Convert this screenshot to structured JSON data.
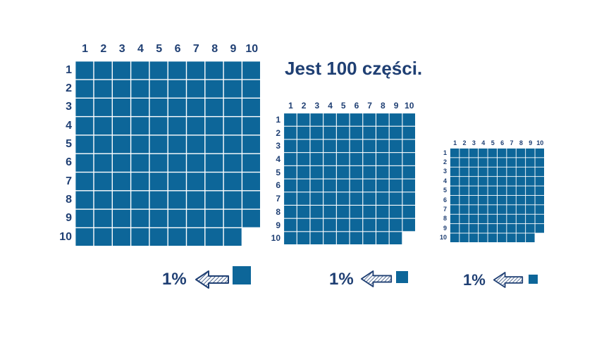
{
  "title": "Jest 100 części.",
  "colors": {
    "cell": "#0d6699",
    "grid_line": "#ffffff",
    "text": "#1f3f73"
  },
  "grid": {
    "rows": 10,
    "cols": 10,
    "column_labels": [
      "1",
      "2",
      "3",
      "4",
      "5",
      "6",
      "7",
      "8",
      "9",
      "10"
    ],
    "row_labels": [
      "1",
      "2",
      "3",
      "4",
      "5",
      "6",
      "7",
      "8",
      "9",
      "10"
    ],
    "missing_cell": {
      "row": 10,
      "col": 10
    }
  },
  "grids": [
    {
      "id": "large",
      "percent_label": "1%",
      "arrow_icon": "hatched-arrow-icon"
    },
    {
      "id": "medium",
      "percent_label": "1%",
      "arrow_icon": "hatched-arrow-icon"
    },
    {
      "id": "small",
      "percent_label": "1%",
      "arrow_icon": "hatched-arrow-icon"
    }
  ]
}
